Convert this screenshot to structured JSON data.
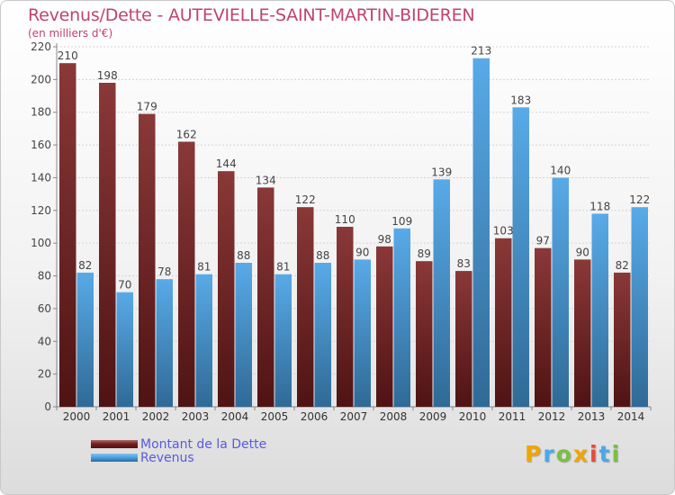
{
  "title": "Revenus/Dette - AUTEVIELLE-SAINT-MARTIN-BIDEREN",
  "subtitle": "(en milliers d'€)",
  "brand": {
    "letters": [
      "P",
      "r",
      "o",
      "x",
      "i",
      "t",
      "i"
    ],
    "colors": [
      "#f0a500",
      "#4aa8e8",
      "#7ac043",
      "#f0a500",
      "#e84a3c",
      "#4aa8e8",
      "#7ac043"
    ]
  },
  "colors": {
    "dette": "#7a1d1d",
    "revenus": "#4aa3e6",
    "title": "#c0446b",
    "legend_text": "#5a5ae0"
  },
  "legend": [
    {
      "label": "Montant de la Dette",
      "color": "#7a1d1d"
    },
    {
      "label": "Revenus",
      "color": "#4aa3e6"
    }
  ],
  "chart_data": {
    "type": "bar",
    "title": "Revenus/Dette - AUTEVIELLE-SAINT-MARTIN-BIDEREN",
    "subtitle": "(en milliers d'€)",
    "categories": [
      "2000",
      "2001",
      "2002",
      "2003",
      "2004",
      "2005",
      "2006",
      "2007",
      "2008",
      "2009",
      "2010",
      "2011",
      "2012",
      "2013",
      "2014"
    ],
    "series": [
      {
        "name": "Montant de la Dette",
        "values": [
          210,
          198,
          179,
          162,
          144,
          134,
          122,
          110,
          98,
          89,
          83,
          103,
          97,
          90,
          82
        ]
      },
      {
        "name": "Revenus",
        "values": [
          82,
          70,
          78,
          81,
          88,
          81,
          88,
          90,
          109,
          139,
          213,
          183,
          140,
          118,
          122
        ]
      }
    ],
    "y_ticks": [
      0,
      20,
      40,
      60,
      80,
      100,
      120,
      140,
      160,
      180,
      200,
      220
    ],
    "ylim": [
      0,
      220
    ],
    "grid": true,
    "legend_position": "bottom-left"
  }
}
